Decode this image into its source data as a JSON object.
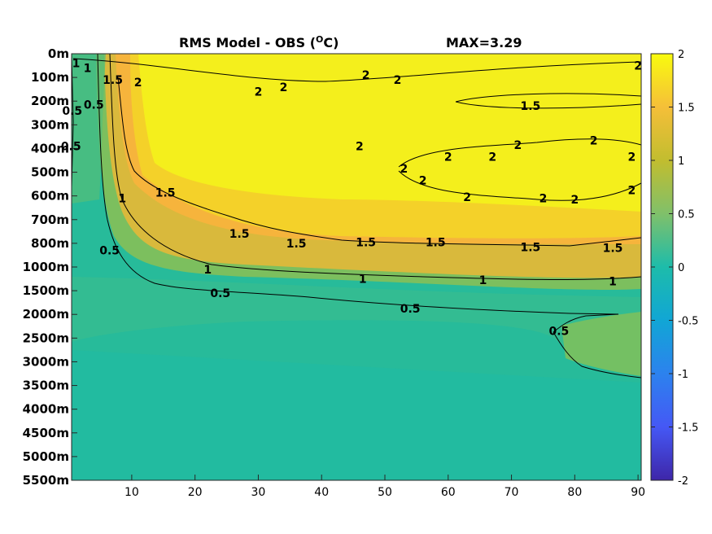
{
  "chart_data": {
    "type": "heatmap",
    "title": "RMS Model - OBS (",
    "title_superscript": "O",
    "title_suffix": "C)",
    "max_label": "MAX=3.29",
    "x_ticks": [
      10,
      20,
      30,
      40,
      50,
      60,
      70,
      80,
      90
    ],
    "xlim": [
      0.5,
      90.5
    ],
    "y_depth_labels": [
      "0m",
      "100m",
      "200m",
      "300m",
      "400m",
      "500m",
      "600m",
      "700m",
      "800m",
      "1000m",
      "1500m",
      "2000m",
      "2500m",
      "3000m",
      "3500m",
      "4000m",
      "4500m",
      "5000m",
      "5500m"
    ],
    "colorbar": {
      "ticks": [
        2,
        1.5,
        1,
        0.5,
        0,
        -0.5,
        -1,
        -1.5,
        -2
      ],
      "tick_labels": [
        "2",
        "1.5",
        "1",
        "0.5",
        "0",
        "-0.5",
        "-1",
        "-1.5",
        "-2"
      ],
      "range": [
        -2,
        2
      ],
      "colormap": "parula"
    },
    "contour_labels": [
      {
        "text": "1.5",
        "x": 15.3,
        "level": 5.85
      },
      {
        "text": "1.5",
        "x": 27,
        "level": 7.6
      },
      {
        "text": "1.5",
        "x": 36,
        "level": 8.0
      },
      {
        "text": "1.5",
        "x": 47,
        "level": 7.95
      },
      {
        "text": "1.5",
        "x": 58,
        "level": 7.95
      },
      {
        "text": "1.5",
        "x": 73,
        "level": 8.15
      },
      {
        "text": "1.5",
        "x": 86,
        "level": 8.2
      },
      {
        "text": "1",
        "x": 8.5,
        "level": 6.1
      },
      {
        "text": "1",
        "x": 22,
        "level": 9.1
      },
      {
        "text": "1",
        "x": 46.5,
        "level": 9.5
      },
      {
        "text": "1",
        "x": 65.5,
        "level": 9.55
      },
      {
        "text": "1",
        "x": 86,
        "level": 9.6
      },
      {
        "text": "0.5",
        "x": 6.5,
        "level": 8.3
      },
      {
        "text": "0.5",
        "x": 24,
        "level": 10.1
      },
      {
        "text": "0.5",
        "x": 54,
        "level": 10.75
      },
      {
        "text": "0.5",
        "x": 77.5,
        "level": 11.7
      },
      {
        "text": "0.5",
        "x": 0.6,
        "level": 2.4
      },
      {
        "text": "0.5",
        "x": 0.4,
        "level": 3.9
      },
      {
        "text": "0.5",
        "x": 4,
        "level": 2.15
      },
      {
        "text": "1.5",
        "x": 7,
        "level": 1.1
      },
      {
        "text": "1.5",
        "x": 73,
        "level": 2.2
      },
      {
        "text": "2",
        "x": 11,
        "level": 1.2
      },
      {
        "text": "2",
        "x": 30,
        "level": 1.6
      },
      {
        "text": "2",
        "x": 34,
        "level": 1.4
      },
      {
        "text": "2",
        "x": 47,
        "level": 0.9
      },
      {
        "text": "2",
        "x": 52,
        "level": 1.1
      },
      {
        "text": "2",
        "x": 46,
        "level": 3.9
      },
      {
        "text": "2",
        "x": 53,
        "level": 4.85
      },
      {
        "text": "2",
        "x": 56,
        "level": 5.35
      },
      {
        "text": "2",
        "x": 60,
        "level": 4.35
      },
      {
        "text": "2",
        "x": 63,
        "level": 6.05
      },
      {
        "text": "2",
        "x": 67,
        "level": 4.35
      },
      {
        "text": "2",
        "x": 71,
        "level": 3.85
      },
      {
        "text": "2",
        "x": 75,
        "level": 6.1
      },
      {
        "text": "2",
        "x": 80,
        "level": 6.15
      },
      {
        "text": "2",
        "x": 83,
        "level": 3.65
      },
      {
        "text": "2",
        "x": 89,
        "level": 4.35
      },
      {
        "text": "2",
        "x": 89,
        "level": 5.75
      },
      {
        "text": "2",
        "x": 90,
        "level": 0.5
      },
      {
        "text": "1",
        "x": 1.2,
        "level": 0.4
      },
      {
        "text": "1",
        "x": 3,
        "level": 0.6
      }
    ]
  }
}
